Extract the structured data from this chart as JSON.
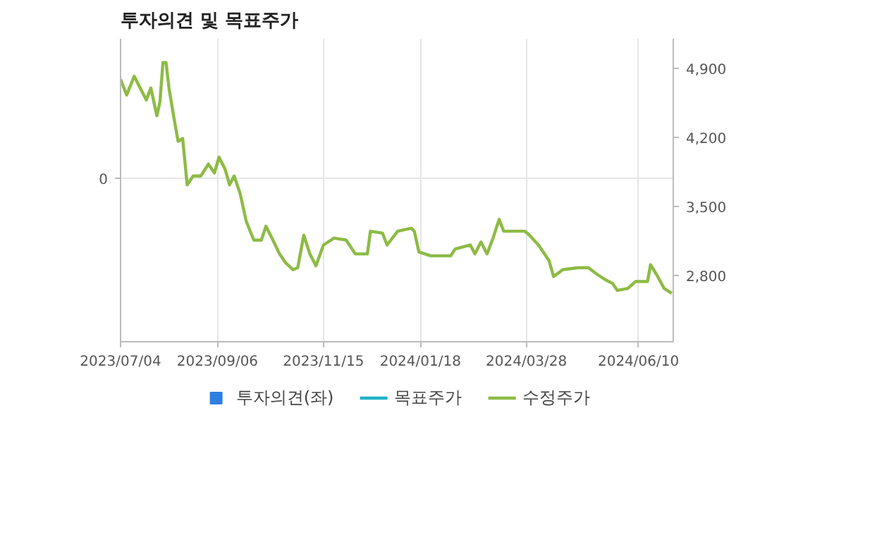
{
  "chart_data": {
    "type": "line",
    "title": "투자의견 및 목표주가",
    "annotations": [
      "0"
    ],
    "xlim": [
      "2023-07-04",
      "2024-07-03"
    ],
    "xticks": [
      {
        "value": "2023-07-04",
        "label": "2023/07/04"
      },
      {
        "value": "2023-09-06",
        "label": "2023/09/06"
      },
      {
        "value": "2023-11-15",
        "label": "2023/11/15"
      },
      {
        "value": "2024-01-18",
        "label": "2024/01/18"
      },
      {
        "value": "2024-03-28",
        "label": "2024/03/28"
      },
      {
        "value": "2024-06-10",
        "label": "2024/06/10"
      }
    ],
    "y2lim": [
      2130,
      5200
    ],
    "y2ticks": [
      {
        "value": 2800,
        "label": "2,800"
      },
      {
        "value": 3500,
        "label": "3,500"
      },
      {
        "value": 4200,
        "label": "4,200"
      },
      {
        "value": 4900,
        "label": "4,900"
      }
    ],
    "grid": true,
    "legend": "bottom",
    "series": [
      {
        "name": "투자의견(좌)",
        "type": "bar",
        "color": "#2f7fe0",
        "axis": "y"
      },
      {
        "name": "목표주가",
        "color": "#1fb3c8",
        "axis": "y2"
      },
      {
        "name": "수정주가",
        "color": "#8dbb45",
        "axis": "y2",
        "x": [
          "2023-07-04",
          "2023-07-08",
          "2023-07-13",
          "2023-07-17",
          "2023-07-21",
          "2023-07-24",
          "2023-07-28",
          "2023-07-30",
          "2023-08-01",
          "2023-08-03",
          "2023-08-05",
          "2023-08-08",
          "2023-08-11",
          "2023-08-14",
          "2023-08-17",
          "2023-08-21",
          "2023-08-26",
          "2023-08-31",
          "2023-09-04",
          "2023-09-07",
          "2023-09-11",
          "2023-09-14",
          "2023-09-17",
          "2023-09-21",
          "2023-09-25",
          "2023-09-30",
          "2023-10-05",
          "2023-10-08",
          "2023-10-12",
          "2023-10-17",
          "2023-10-21",
          "2023-10-26",
          "2023-10-29",
          "2023-11-02",
          "2023-11-06",
          "2023-11-10",
          "2023-11-15",
          "2023-11-22",
          "2023-11-30",
          "2023-12-06",
          "2023-12-14",
          "2023-12-16",
          "2023-12-24",
          "2023-12-27",
          "2024-01-03",
          "2024-01-12",
          "2024-01-14",
          "2024-01-17",
          "2024-01-25",
          "2024-02-07",
          "2024-02-10",
          "2024-02-20",
          "2024-02-23",
          "2024-02-27",
          "2024-03-02",
          "2024-03-06",
          "2024-03-10",
          "2024-03-13",
          "2024-03-20",
          "2024-03-27",
          "2024-03-30",
          "2024-04-05",
          "2024-04-12",
          "2024-04-15",
          "2024-04-21",
          "2024-05-01",
          "2024-05-08",
          "2024-05-14",
          "2024-05-19",
          "2024-05-24",
          "2024-05-27",
          "2024-06-03",
          "2024-06-08",
          "2024-06-16",
          "2024-06-18",
          "2024-06-22",
          "2024-06-27",
          "2024-07-02"
        ],
        "values": [
          4790,
          4630,
          4820,
          4700,
          4580,
          4700,
          4420,
          4560,
          4960,
          4960,
          4700,
          4420,
          4160,
          4190,
          3720,
          3810,
          3810,
          3930,
          3840,
          4000,
          3880,
          3720,
          3810,
          3630,
          3350,
          3160,
          3160,
          3300,
          3180,
          3020,
          2930,
          2860,
          2880,
          3210,
          3020,
          2900,
          3110,
          3180,
          3160,
          3020,
          3020,
          3250,
          3230,
          3110,
          3250,
          3280,
          3250,
          3040,
          3000,
          3000,
          3070,
          3110,
          3020,
          3140,
          3020,
          3180,
          3370,
          3250,
          3250,
          3250,
          3210,
          3110,
          2950,
          2790,
          2860,
          2880,
          2880,
          2810,
          2760,
          2720,
          2650,
          2670,
          2740,
          2740,
          2910,
          2810,
          2670,
          2620
        ]
      }
    ]
  }
}
